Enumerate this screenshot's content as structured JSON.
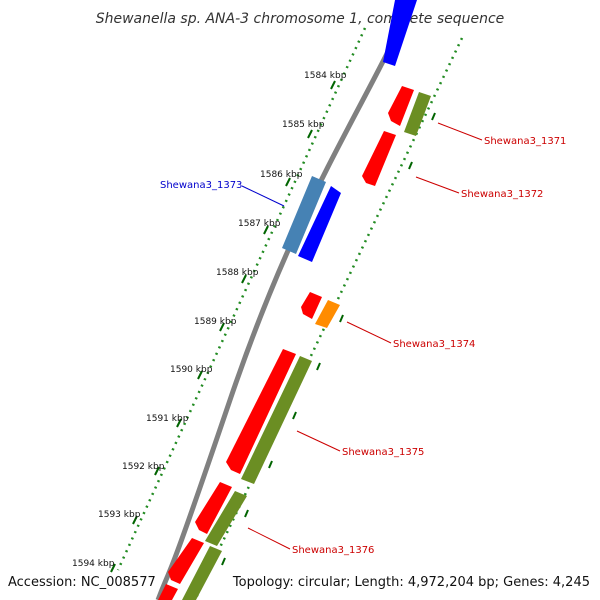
{
  "title": "Shewanella sp. ANA-3 chromosome 1, complete sequence",
  "accession": "Accession: NC_008577",
  "topology": "Topology: circular; Length: 4,972,204 bp; Genes: 4,245",
  "ticks": [
    "1584 kbp",
    "1585 kbp",
    "1586 kbp",
    "1587 kbp",
    "1588 kbp",
    "1589 kbp",
    "1590 kbp",
    "1591 kbp",
    "1592 kbp",
    "1593 kbp",
    "1594 kbp"
  ],
  "genes": [
    {
      "name": "Shewana3_1371",
      "color": "#cc0000"
    },
    {
      "name": "Shewana3_1372",
      "color": "#cc0000"
    },
    {
      "name": "Shewana3_1373",
      "color": "#0000cc"
    },
    {
      "name": "Shewana3_1374",
      "color": "#cc0000"
    },
    {
      "name": "Shewana3_1375",
      "color": "#cc0000"
    },
    {
      "name": "Shewana3_1376",
      "color": "#cc0000"
    }
  ],
  "colors": {
    "backbone": "#808080",
    "cds_red": "#ff0000",
    "cds_blue": "#0000ff",
    "cds_steelblue": "#4682b4",
    "olive": "#6b8e23",
    "orange": "#ff8c00",
    "tick_green": "#006400"
  }
}
